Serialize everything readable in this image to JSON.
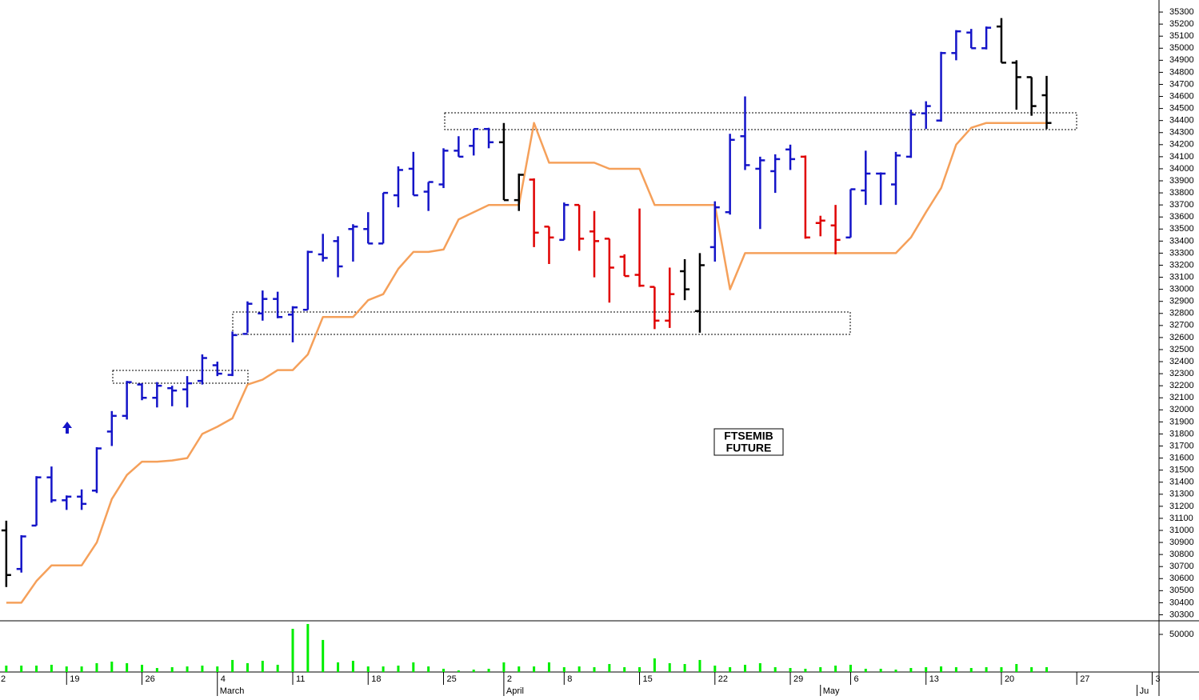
{
  "chart_data": [
    {
      "type": "ohlc",
      "annotation": [
        "FTSEMIB",
        "FUTURE"
      ],
      "categories": [
        "2",
        null,
        null,
        null,
        null,
        "19",
        null,
        null,
        null,
        null,
        "26",
        null,
        null,
        null,
        null,
        "4",
        null,
        null,
        null,
        null,
        "11",
        null,
        null,
        null,
        null,
        "18",
        null,
        null,
        null,
        null,
        "25",
        null,
        null,
        null,
        "2",
        null,
        null,
        null,
        "8",
        null,
        null,
        null,
        null,
        "15",
        null,
        null,
        null,
        null,
        "22",
        null,
        null,
        null,
        null,
        "29",
        null,
        null,
        null,
        "6",
        null,
        null,
        null,
        null,
        "13",
        null,
        null,
        null,
        null,
        "20",
        null,
        null,
        null,
        null,
        "27",
        null,
        null,
        null,
        null,
        "3"
      ],
      "months": [
        null,
        null,
        null,
        null,
        null,
        null,
        null,
        null,
        null,
        null,
        null,
        null,
        null,
        null,
        null,
        "March",
        null,
        null,
        null,
        null,
        null,
        null,
        null,
        null,
        null,
        null,
        null,
        null,
        null,
        null,
        null,
        null,
        null,
        null,
        "April",
        null,
        null,
        null,
        null,
        null,
        null,
        null,
        null,
        null,
        null,
        null,
        null,
        null,
        null,
        null,
        null,
        null,
        null,
        null,
        null,
        "May",
        null,
        null,
        null,
        null,
        null,
        null,
        null,
        null,
        null,
        null,
        null,
        null,
        null,
        null,
        null,
        null,
        null,
        null,
        null,
        null,
        "Ju"
      ],
      "open": [
        null,
        31000,
        30680,
        31040,
        31440,
        31250,
        31280,
        31330,
        31820,
        31950,
        32210,
        32100,
        32180,
        32170,
        32240,
        32370,
        32290,
        32630,
        32800,
        32920,
        32790,
        32830,
        33290,
        33400,
        33500,
        33500,
        33380,
        33780,
        34000,
        33810,
        33870,
        34150,
        34190,
        34330,
        34220,
        33740,
        33910,
        33520,
        33410,
        33700,
        33480,
        33420,
        33270,
        33120,
        33020,
        32740,
        33150,
        32820,
        33350,
        33640,
        34270,
        34000,
        33980,
        34160,
        34100,
        33550,
        33530,
        33430,
        33820,
        33960,
        33870,
        34100,
        34460,
        34400,
        34960,
        35130,
        35000,
        35180,
        34880,
        34760,
        34610,
        null,
        null,
        null,
        null,
        null,
        null,
        null
      ],
      "high": [
        null,
        31080,
        30960,
        31450,
        31530,
        31290,
        31340,
        31690,
        31990,
        32240,
        32220,
        32230,
        32200,
        32280,
        32460,
        32400,
        32650,
        32900,
        32990,
        32980,
        32860,
        33320,
        33460,
        33440,
        33540,
        33640,
        33800,
        34020,
        34140,
        33890,
        34170,
        34270,
        34330,
        34340,
        34380,
        33960,
        33920,
        33520,
        33720,
        33700,
        33650,
        33420,
        33290,
        33670,
        33020,
        33180,
        33250,
        33300,
        33730,
        34290,
        34600,
        34100,
        34120,
        34200,
        34110,
        33610,
        33700,
        33830,
        34150,
        33970,
        34140,
        34490,
        34560,
        34970,
        35150,
        35160,
        35180,
        35250,
        34900,
        34760,
        34770,
        null,
        null,
        null,
        null,
        null,
        null,
        null
      ],
      "low": [
        null,
        30530,
        30650,
        31040,
        31230,
        31170,
        31170,
        31310,
        31700,
        31920,
        32080,
        32020,
        32030,
        32020,
        32210,
        32280,
        32280,
        32640,
        32740,
        32760,
        32560,
        32830,
        33230,
        33100,
        33230,
        33380,
        33380,
        33680,
        33780,
        33650,
        33840,
        34100,
        34110,
        34170,
        33740,
        33650,
        33350,
        33210,
        33410,
        33320,
        33100,
        32890,
        33110,
        33020,
        32670,
        32680,
        32910,
        32640,
        33230,
        33620,
        33990,
        33500,
        33800,
        33990,
        33420,
        33440,
        33290,
        33430,
        33700,
        33700,
        33700,
        34090,
        34330,
        34390,
        34900,
        35000,
        34990,
        34880,
        34490,
        34440,
        34330,
        null,
        null,
        null,
        null,
        null,
        null,
        null
      ],
      "close": [
        null,
        30630,
        30950,
        31440,
        31250,
        31280,
        31220,
        31680,
        31950,
        32230,
        32100,
        32200,
        32160,
        32220,
        32430,
        32300,
        32620,
        32880,
        32920,
        32770,
        32850,
        33310,
        33260,
        33190,
        33520,
        33380,
        33800,
        33990,
        33780,
        33890,
        34150,
        34100,
        34330,
        34220,
        33740,
        33950,
        33470,
        33430,
        33700,
        33420,
        33400,
        33180,
        33110,
        33030,
        32740,
        32960,
        33000,
        33200,
        33680,
        34240,
        34030,
        34070,
        34080,
        34080,
        33430,
        33570,
        33410,
        33830,
        33960,
        33960,
        34110,
        34450,
        34520,
        34960,
        35140,
        35000,
        35170,
        34880,
        34760,
        34520,
        34380,
        null,
        null,
        null,
        null,
        null,
        null,
        null
      ],
      "bar_colors": [
        null,
        "#000000",
        "#1414c8",
        "#1414c8",
        "#1414c8",
        "#1414c8",
        "#1414c8",
        "#1414c8",
        "#1414c8",
        "#1414c8",
        "#1414c8",
        "#1414c8",
        "#1414c8",
        "#1414c8",
        "#1414c8",
        "#1414c8",
        "#1414c8",
        "#1414c8",
        "#1414c8",
        "#1414c8",
        "#1414c8",
        "#1414c8",
        "#1414c8",
        "#1414c8",
        "#1414c8",
        "#1414c8",
        "#1414c8",
        "#1414c8",
        "#1414c8",
        "#1414c8",
        "#1414c8",
        "#1414c8",
        "#1414c8",
        "#1414c8",
        "#000000",
        "#000000",
        "#e00000",
        "#e00000",
        "#1414c8",
        "#e00000",
        "#e00000",
        "#e00000",
        "#e00000",
        "#e00000",
        "#e00000",
        "#e00000",
        "#000000",
        "#000000",
        "#1414c8",
        "#1414c8",
        "#1414c8",
        "#1414c8",
        "#1414c8",
        "#1414c8",
        "#e00000",
        "#e00000",
        "#e00000",
        "#1414c8",
        "#1414c8",
        "#1414c8",
        "#1414c8",
        "#1414c8",
        "#1414c8",
        "#1414c8",
        "#1414c8",
        "#1414c8",
        "#1414c8",
        "#000000",
        "#000000",
        "#000000",
        "#000000",
        null,
        null,
        null,
        null,
        null,
        null,
        null
      ],
      "line": {
        "color": "#f5a05a",
        "values": [
          null,
          30400,
          30400,
          30580,
          30710,
          30710,
          30710,
          30900,
          31260,
          31460,
          31570,
          31570,
          31580,
          31600,
          31800,
          31860,
          31930,
          32210,
          32250,
          32330,
          32330,
          32460,
          32770,
          32770,
          32770,
          32910,
          32960,
          33170,
          33310,
          33310,
          33330,
          33580,
          33640,
          33700,
          33700,
          33700,
          34380,
          34050,
          34050,
          34050,
          34050,
          34000,
          34000,
          34000,
          33700,
          33700,
          33700,
          33700,
          33700,
          33000,
          33300,
          33300,
          33300,
          33300,
          33300,
          33300,
          33300,
          33300,
          33300,
          33300,
          33300,
          33430,
          33640,
          33840,
          34200,
          34340,
          34380,
          34380,
          34380,
          34380,
          34380,
          null,
          null,
          null,
          null,
          null,
          null,
          null
        ]
      },
      "ylim": [
        30250,
        35400
      ],
      "yticks": [
        30300,
        30400,
        30500,
        30600,
        30700,
        30800,
        30900,
        31000,
        31100,
        31200,
        31300,
        31400,
        31500,
        31600,
        31700,
        31800,
        31900,
        32000,
        32100,
        32200,
        32300,
        32400,
        32500,
        32600,
        32700,
        32800,
        32900,
        33000,
        33100,
        33200,
        33300,
        33400,
        33500,
        33600,
        33700,
        33800,
        33900,
        34000,
        34100,
        34200,
        34300,
        34400,
        34500,
        34600,
        34700,
        34800,
        34900,
        35000,
        35100,
        35200,
        35300
      ]
    },
    {
      "type": "bar",
      "color": "#00ee00",
      "values": [
        null,
        8500,
        8500,
        8500,
        9600,
        7400,
        7400,
        11700,
        13800,
        11700,
        9600,
        5300,
        6400,
        7400,
        8500,
        7400,
        16000,
        11700,
        14900,
        9600,
        57400,
        63800,
        42600,
        12800,
        14900,
        7400,
        7400,
        8500,
        12800,
        7400,
        4300,
        2100,
        3200,
        4300,
        12800,
        7400,
        7400,
        12800,
        6400,
        7400,
        6400,
        10600,
        6400,
        6400,
        18100,
        11700,
        10600,
        16000,
        8500,
        6400,
        9600,
        11700,
        6400,
        5300,
        4300,
        6400,
        8500,
        9600,
        4300,
        4300,
        3200,
        5300,
        6400,
        7400,
        6400,
        5300,
        6400,
        6400,
        10600,
        6400,
        6400,
        null,
        null,
        null,
        null,
        null,
        null,
        null
      ],
      "ylim": [
        0,
        67000
      ],
      "yticks": [
        50000
      ]
    }
  ]
}
